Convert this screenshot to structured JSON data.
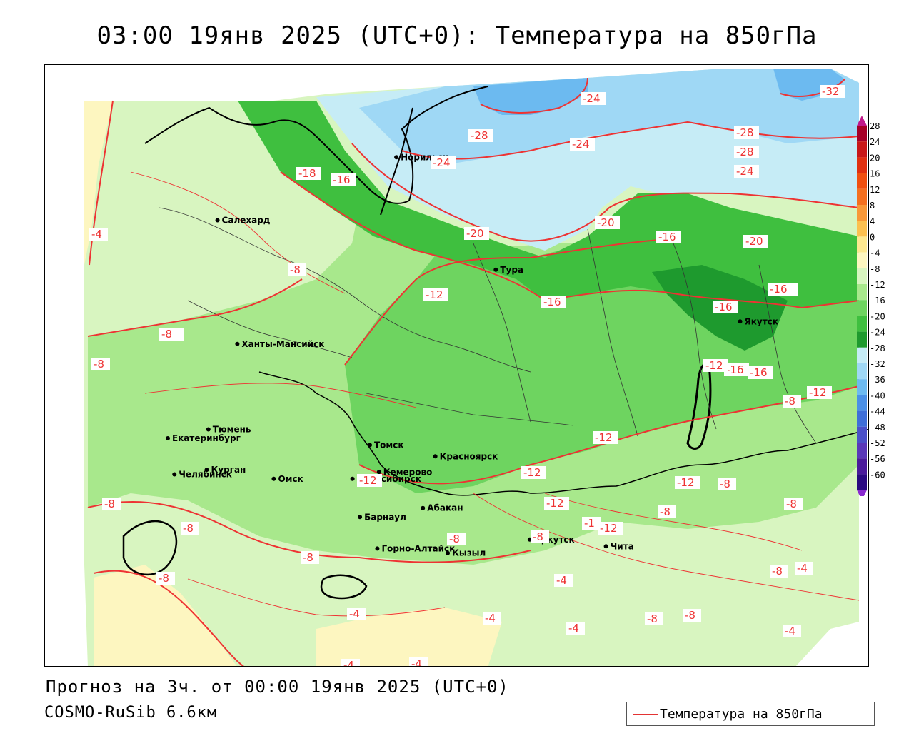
{
  "title": "03:00 19янв 2025 (UTC+0): Температура на 850гПа",
  "footer": {
    "forecast": "Прогноз на 3ч. от 00:00 19янв 2025 (UTC+0)",
    "model": "COSMO-RuSib 6.6км"
  },
  "legend": {
    "label": "Температура на 850гПа",
    "color": "#e33333"
  },
  "colorbar": {
    "ticks": [
      "28",
      "24",
      "20",
      "16",
      "12",
      "8",
      "4",
      "0",
      "-4",
      "-8",
      "-12",
      "-16",
      "-20",
      "-24",
      "-28",
      "-32",
      "-36",
      "-40",
      "-44",
      "-48",
      "-52",
      "-56",
      "-60"
    ],
    "colors": [
      "#a50026",
      "#c81818",
      "#e03010",
      "#f05010",
      "#f47020",
      "#f89838",
      "#fcc050",
      "#fde890",
      "#fdf6c0",
      "#d8f5c0",
      "#a8e88c",
      "#6ed460",
      "#3fbf3f",
      "#1e9a2e",
      "#c6ecf6",
      "#9fd8f5",
      "#6cbaf0",
      "#4a90e6",
      "#3f6fd8",
      "#4a50c8",
      "#5a38b8",
      "#4a1a9a",
      "#2a0a80"
    ],
    "top_arrow_color": "#c0188a",
    "bottom_arrow_color": "#8a2ad0"
  },
  "cities": [
    {
      "name": "Салехард",
      "lon": 66.6,
      "lat": 66.5
    },
    {
      "name": "Норильск",
      "lon": 88.2,
      "lat": 69.3
    },
    {
      "name": "Якутск",
      "lon": 129.7,
      "lat": 62.0
    },
    {
      "name": "Тура",
      "lon": 100.2,
      "lat": 64.3
    },
    {
      "name": "Ханты-Мансийск",
      "lon": 69.0,
      "lat": 61.0
    },
    {
      "name": "Екатеринбург",
      "lon": 60.6,
      "lat": 56.8
    },
    {
      "name": "Тюмень",
      "lon": 65.5,
      "lat": 57.2
    },
    {
      "name": "Челябинск",
      "lon": 61.4,
      "lat": 55.2
    },
    {
      "name": "Курган",
      "lon": 65.3,
      "lat": 55.4
    },
    {
      "name": "Омск",
      "lon": 73.4,
      "lat": 55.0
    },
    {
      "name": "Новосибирск",
      "lon": 82.9,
      "lat": 55.0
    },
    {
      "name": "Томск",
      "lon": 85.0,
      "lat": 56.5
    },
    {
      "name": "Кемерово",
      "lon": 86.1,
      "lat": 55.3
    },
    {
      "name": "Красноярск",
      "lon": 92.9,
      "lat": 56.0
    },
    {
      "name": "Барнаул",
      "lon": 83.8,
      "lat": 53.3
    },
    {
      "name": "Абакан",
      "lon": 91.4,
      "lat": 53.7
    },
    {
      "name": "Горно-Алтайск",
      "lon": 85.9,
      "lat": 51.9
    },
    {
      "name": "Кызыл",
      "lon": 94.4,
      "lat": 51.7
    },
    {
      "name": "Иркутск",
      "lon": 104.3,
      "lat": 52.3
    },
    {
      "name": "Чита",
      "lon": 113.5,
      "lat": 52.0
    }
  ],
  "contour_labels": [
    "-24",
    "-32",
    "-28",
    "-24",
    "-28",
    "-28",
    "-24",
    "-24",
    "-18",
    "-16",
    "-20",
    "-20",
    "-16",
    "-20",
    "-16",
    "-4",
    "-8",
    "-12",
    "-16",
    "-16",
    "-16",
    "-8",
    "-8",
    "-16",
    "-12",
    "-16",
    "-12",
    "-12",
    "-12",
    "-12",
    "-12",
    "-8",
    "-8",
    "-12",
    "-8",
    "-1",
    "-12",
    "-8",
    "-8",
    "-8",
    "-8",
    "-8",
    "-8",
    "-8",
    "-8",
    "-4",
    "-4",
    "-4",
    "-4",
    "-4",
    "-4",
    "-4",
    "-8",
    "-8",
    "-4",
    "-8"
  ]
}
